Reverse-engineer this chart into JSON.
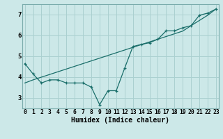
{
  "xlabel": "Humidex (Indice chaleur)",
  "bg_color": "#cce8e8",
  "grid_color": "#aad0d0",
  "line_color": "#1a6e6a",
  "spine_color": "#7aacac",
  "x_data": [
    0,
    1,
    2,
    3,
    4,
    5,
    6,
    7,
    8,
    9,
    10,
    11,
    12,
    13,
    14,
    15,
    16,
    17,
    18,
    19,
    20,
    21,
    22,
    23
  ],
  "y_curve": [
    4.65,
    4.15,
    3.72,
    3.87,
    3.87,
    3.72,
    3.72,
    3.72,
    3.52,
    2.68,
    3.35,
    3.35,
    4.42,
    5.47,
    5.57,
    5.65,
    5.82,
    6.22,
    6.22,
    6.37,
    6.47,
    6.97,
    7.07,
    7.27
  ],
  "y_line": [
    3.72,
    3.87,
    4.0,
    4.13,
    4.26,
    4.39,
    4.52,
    4.65,
    4.78,
    4.91,
    5.04,
    5.17,
    5.3,
    5.43,
    5.56,
    5.69,
    5.82,
    5.95,
    6.08,
    6.21,
    6.47,
    6.72,
    6.97,
    7.27
  ],
  "xlim": [
    -0.3,
    23.3
  ],
  "ylim": [
    2.5,
    7.5
  ],
  "yticks": [
    3,
    4,
    5,
    6,
    7
  ],
  "xticks": [
    0,
    1,
    2,
    3,
    4,
    5,
    6,
    7,
    8,
    9,
    10,
    11,
    12,
    13,
    14,
    15,
    16,
    17,
    18,
    19,
    20,
    21,
    22,
    23
  ],
  "tick_fontsize": 5.8,
  "xlabel_fontsize": 7.0,
  "ytick_fontsize": 6.5
}
